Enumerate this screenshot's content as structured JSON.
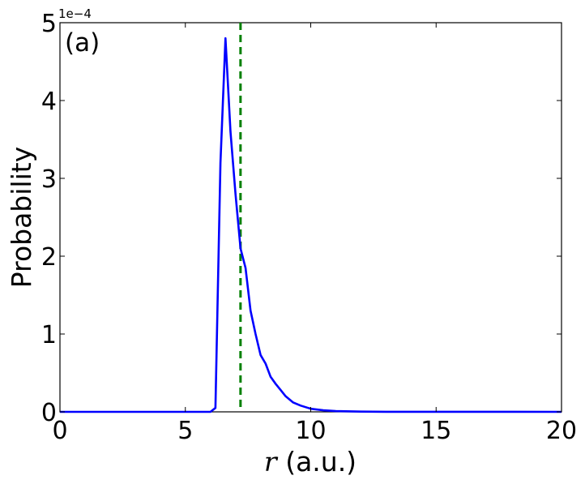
{
  "chart_data": {
    "type": "line",
    "panel_label": "(a)",
    "xlabel_var": "r",
    "xlabel_unit": " (a.u.)",
    "ylabel": "Probability",
    "y_exponent_label": "1e−4",
    "xlim": [
      0,
      20
    ],
    "ylim": [
      0,
      5
    ],
    "y_scale_note": "values in units of 1e-4",
    "x_ticks": [
      0,
      5,
      10,
      15,
      20
    ],
    "x_tick_labels": [
      "0",
      "5",
      "10",
      "15",
      "20"
    ],
    "y_ticks": [
      0,
      1,
      2,
      3,
      4,
      5
    ],
    "y_tick_labels": [
      "0",
      "1",
      "2",
      "3",
      "4",
      "5"
    ],
    "grid": false,
    "series": [
      {
        "color": "#0000ff",
        "x": [
          0,
          6.0,
          6.2,
          6.4,
          6.6,
          6.8,
          7.0,
          7.2,
          7.4,
          7.6,
          7.8,
          8.0,
          8.2,
          8.4,
          8.6,
          8.8,
          9.0,
          9.3,
          9.6,
          10.0,
          10.5,
          11.0,
          12.0,
          13.0,
          20.0
        ],
        "y": [
          0,
          0,
          0.05,
          3.2,
          4.8,
          3.6,
          2.8,
          2.1,
          1.85,
          1.3,
          1.0,
          0.73,
          0.62,
          0.45,
          0.36,
          0.28,
          0.2,
          0.12,
          0.08,
          0.04,
          0.02,
          0.01,
          0.003,
          0.001,
          0
        ]
      }
    ],
    "reference_line": {
      "x": 7.2,
      "color": "#008000",
      "style": "dashed"
    }
  }
}
